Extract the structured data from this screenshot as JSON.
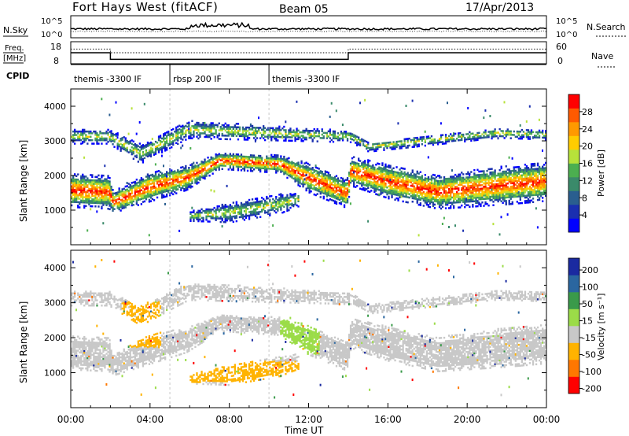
{
  "header": {
    "station": "Fort Hays West (fitACF)",
    "beam": "Beam 05",
    "date": "17/Apr/2013"
  },
  "noise_panel": {
    "left_label": "N.Sky",
    "left_ticks": [
      "10^5",
      "10^0"
    ],
    "right_label": "N.Search",
    "right_ticks": [
      "10^5",
      "10^0"
    ]
  },
  "freq_panel": {
    "left_label_top": "Freq.",
    "left_label_bottom": "[MHz]",
    "left_ticks": [
      "18",
      "8"
    ],
    "right_label": "Nave",
    "right_ticks": [
      "60",
      "0"
    ],
    "cpid_label": "CPID"
  },
  "cpid_segments": [
    {
      "label": "themis -3300 IF",
      "start_hour": 0,
      "end_hour": 5
    },
    {
      "label": "rbsp 200 IF",
      "start_hour": 5,
      "end_hour": 10
    },
    {
      "label": "themis -3300 IF",
      "start_hour": 10,
      "end_hour": 24
    }
  ],
  "xaxis": {
    "title": "Time UT",
    "ticks": [
      "00:00",
      "04:00",
      "08:00",
      "12:00",
      "16:00",
      "20:00",
      "00:00"
    ]
  },
  "power_panel": {
    "ylabel": "Slant Range [km]",
    "yticks": [
      "1000",
      "2000",
      "3000",
      "4000"
    ],
    "colorbar_label": "Power [dB]",
    "colorbar_ticks": [
      "4",
      "8",
      "12",
      "16",
      "20",
      "24",
      "28"
    ],
    "colors": [
      "#0000ff",
      "#1a2fb0",
      "#2a5e8f",
      "#3a8a6a",
      "#4caf50",
      "#b7e23a",
      "#ffcc00",
      "#ff9900",
      "#ff5a00",
      "#ff0000"
    ]
  },
  "velocity_panel": {
    "ylabel": "Slant Range [km]",
    "yticks": [
      "1000",
      "2000",
      "3000",
      "4000"
    ],
    "colorbar_label": "Velocity [m s⁻¹]",
    "colorbar_ticks": [
      "200",
      "100",
      "50",
      "15",
      "-15",
      "-50",
      "-100",
      "-200"
    ],
    "colors": [
      "#1a2aa0",
      "#2a66a0",
      "#3a9a4a",
      "#9bdc48",
      "#c8c8c8",
      "#ffb300",
      "#ff7700",
      "#ff0000"
    ]
  },
  "chart_data": {
    "type": "heatmap",
    "title": "Fort Hays West (fitACF)",
    "xlabel": "Time UT",
    "ylabel": "Slant Range [km]",
    "xlim": [
      0,
      24
    ],
    "ylim": [
      0,
      4500
    ],
    "frequency_mhz": [
      {
        "start_hour": 0,
        "end_hour": 2,
        "value": 13
      },
      {
        "start_hour": 2,
        "end_hour": 14,
        "value": 10
      },
      {
        "start_hour": 14,
        "end_hour": 24,
        "value": 13
      }
    ],
    "nave": [
      {
        "start_hour": 0,
        "end_hour": 2,
        "value": 40
      },
      {
        "start_hour": 2,
        "end_hour": 14,
        "value": 30
      },
      {
        "start_hour": 14,
        "end_hour": 24,
        "value": 40
      }
    ],
    "power_main_band": [
      {
        "t": 0.0,
        "center_km": 1550,
        "halfwidth_km": 350
      },
      {
        "t": 1.9,
        "center_km": 1500,
        "halfwidth_km": 350
      },
      {
        "t": 2.1,
        "center_km": 1200,
        "halfwidth_km": 220
      },
      {
        "t": 4.0,
        "center_km": 1650,
        "halfwidth_km": 300
      },
      {
        "t": 5.8,
        "center_km": 1900,
        "halfwidth_km": 250
      },
      {
        "t": 7.5,
        "center_km": 2400,
        "halfwidth_km": 170
      },
      {
        "t": 10.5,
        "center_km": 2300,
        "halfwidth_km": 180
      },
      {
        "t": 12.0,
        "center_km": 1900,
        "halfwidth_km": 300
      },
      {
        "t": 13.9,
        "center_km": 1450,
        "halfwidth_km": 300
      },
      {
        "t": 14.1,
        "center_km": 2100,
        "halfwidth_km": 300
      },
      {
        "t": 16.0,
        "center_km": 1800,
        "halfwidth_km": 350
      },
      {
        "t": 18.5,
        "center_km": 1500,
        "halfwidth_km": 350
      },
      {
        "t": 22.0,
        "center_km": 1700,
        "halfwidth_km": 400
      },
      {
        "t": 24.0,
        "center_km": 1800,
        "halfwidth_km": 400
      }
    ],
    "power_upper_band": [
      {
        "t": 0.0,
        "center_km": 3100,
        "halfwidth_km": 150
      },
      {
        "t": 1.9,
        "center_km": 3100,
        "halfwidth_km": 150
      },
      {
        "t": 3.5,
        "center_km": 2600,
        "halfwidth_km": 200
      },
      {
        "t": 5.9,
        "center_km": 3300,
        "halfwidth_km": 180
      },
      {
        "t": 14.1,
        "center_km": 3100,
        "halfwidth_km": 120
      },
      {
        "t": 15.0,
        "center_km": 2800,
        "halfwidth_km": 100
      },
      {
        "t": 21.5,
        "center_km": 3200,
        "halfwidth_km": 100
      },
      {
        "t": 24.0,
        "center_km": 3150,
        "halfwidth_km": 100
      }
    ],
    "power_lower_band": [
      {
        "t": 6.0,
        "center_km": 800,
        "halfwidth_km": 100
      },
      {
        "t": 8.0,
        "center_km": 900,
        "halfwidth_km": 200
      },
      {
        "t": 10.5,
        "center_km": 1150,
        "halfwidth_km": 200
      },
      {
        "t": 11.5,
        "center_km": 1300,
        "halfwidth_km": 150
      }
    ],
    "velocity_features": [
      {
        "name": "ground scatter",
        "value_ms": 0,
        "t_start": 0,
        "t_end": 24,
        "range_km": [
          1200,
          2400
        ]
      },
      {
        "name": "negative velocity patch",
        "value_ms": -50,
        "t_start": 6,
        "t_end": 11.5,
        "range_km": [
          700,
          1300
        ]
      },
      {
        "name": "negative velocity streak",
        "value_ms": -50,
        "t_start": 2.5,
        "t_end": 4.5,
        "range_km": [
          1700,
          3000
        ]
      },
      {
        "name": "positive velocity patch",
        "value_ms": 30,
        "t_start": 10.5,
        "t_end": 12.5,
        "range_km": [
          1500,
          2600
        ]
      }
    ]
  }
}
